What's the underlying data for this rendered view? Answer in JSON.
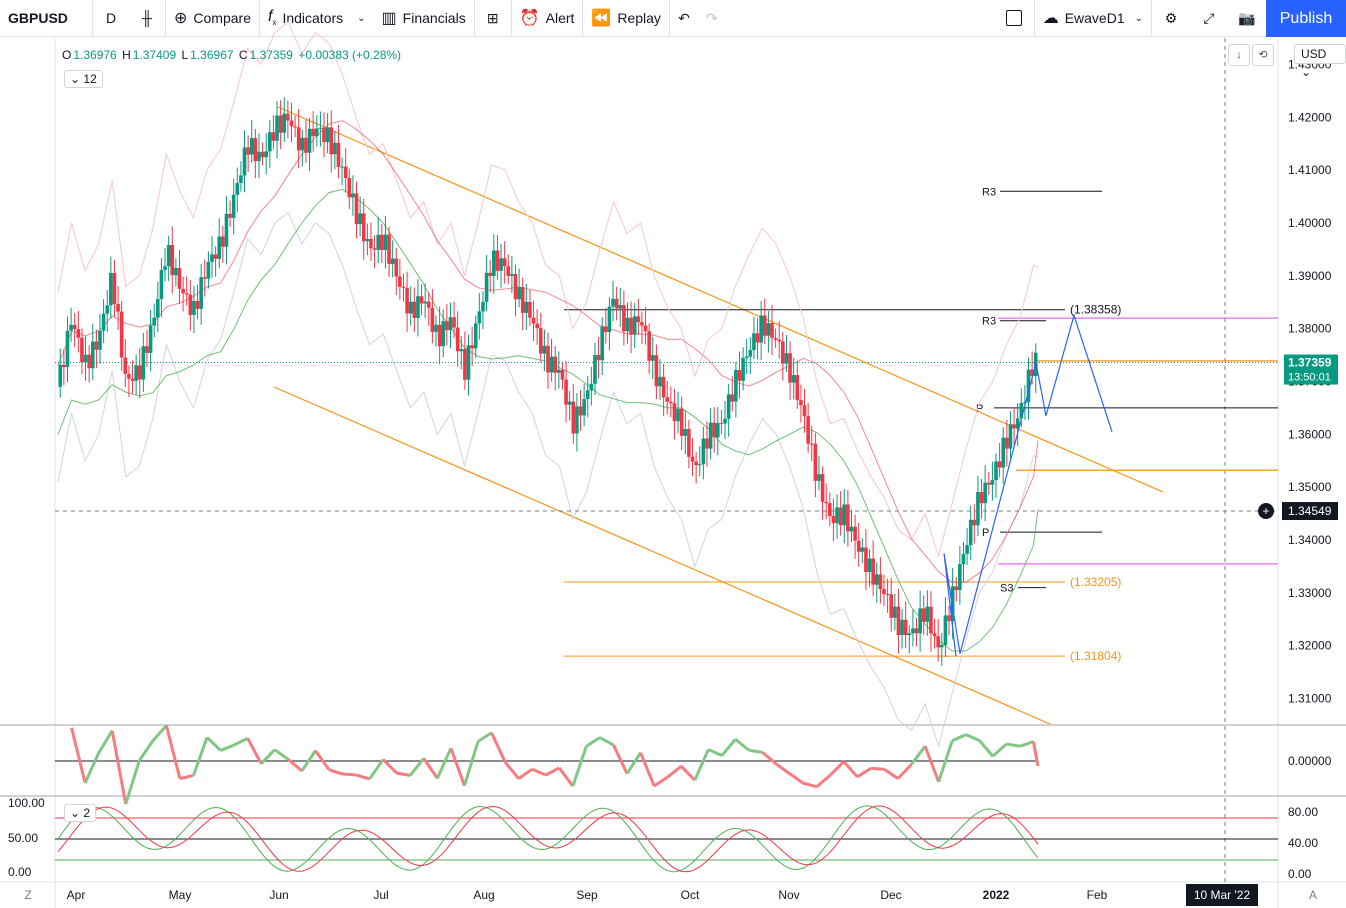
{
  "toolbar": {
    "symbol": "GBPUSD",
    "interval": "D",
    "compare": "Compare",
    "indicators": "Indicators",
    "financials": "Financials",
    "alert": "Alert",
    "replay": "Replay",
    "layout_name": "EwaveD1",
    "publish": "Publish"
  },
  "legend": {
    "open_label": "O",
    "open": "1.36976",
    "high_label": "H",
    "high": "1.37409",
    "low_label": "L",
    "low": "1.36967",
    "close_label": "C",
    "close": "1.37359",
    "change": "+0.00383 (+0.28%)",
    "indicators_count": "12",
    "pane3_count": "2"
  },
  "currency": "USD",
  "bottom": {
    "left_icon": "Z",
    "right_icon": "A",
    "date_badge": "10 Mar '22"
  },
  "colors": {
    "up": "#089981",
    "down": "#f23645",
    "orange": "#f7931a",
    "blue": "#2962ff",
    "magenta": "#e040fb",
    "accent": "#2962ff"
  },
  "chart_data": {
    "type": "candlestick",
    "symbol": "GBPUSD",
    "timeframe": "D",
    "ylim": [
      1.305,
      1.435
    ],
    "y_ticks": [
      "1.43000",
      "1.42000",
      "1.41000",
      "1.40000",
      "1.39000",
      "1.38000",
      "1.37000",
      "1.36000",
      "1.35000",
      "1.34000",
      "1.33000",
      "1.32000",
      "1.31000"
    ],
    "x_ticks": [
      "Apr",
      "May",
      "Jun",
      "Jul",
      "Aug",
      "Sep",
      "Oct",
      "Nov",
      "Dec",
      "2022",
      "Feb",
      "M"
    ],
    "last_price": "1.37359",
    "countdown": "13:50:01",
    "crosshair_price": "1.34549",
    "close_path": [
      [
        0,
        1.369
      ],
      [
        6,
        1.382
      ],
      [
        12,
        1.373
      ],
      [
        18,
        1.378
      ],
      [
        24,
        1.39
      ],
      [
        30,
        1.37
      ],
      [
        36,
        1.372
      ],
      [
        42,
        1.381
      ],
      [
        48,
        1.395
      ],
      [
        54,
        1.388
      ],
      [
        60,
        1.383
      ],
      [
        66,
        1.392
      ],
      [
        72,
        1.396
      ],
      [
        78,
        1.405
      ],
      [
        84,
        1.415
      ],
      [
        90,
        1.412
      ],
      [
        96,
        1.418
      ],
      [
        102,
        1.42
      ],
      [
        108,
        1.414
      ],
      [
        114,
        1.418
      ],
      [
        120,
        1.416
      ],
      [
        126,
        1.41
      ],
      [
        132,
        1.402
      ],
      [
        138,
        1.395
      ],
      [
        144,
        1.397
      ],
      [
        150,
        1.39
      ],
      [
        156,
        1.383
      ],
      [
        162,
        1.386
      ],
      [
        168,
        1.378
      ],
      [
        174,
        1.382
      ],
      [
        180,
        1.372
      ],
      [
        186,
        1.382
      ],
      [
        192,
        1.393
      ],
      [
        198,
        1.392
      ],
      [
        204,
        1.386
      ],
      [
        210,
        1.382
      ],
      [
        216,
        1.374
      ],
      [
        222,
        1.372
      ],
      [
        228,
        1.362
      ],
      [
        234,
        1.367
      ],
      [
        240,
        1.377
      ],
      [
        246,
        1.386
      ],
      [
        252,
        1.38
      ],
      [
        258,
        1.382
      ],
      [
        264,
        1.372
      ],
      [
        270,
        1.366
      ],
      [
        276,
        1.362
      ],
      [
        282,
        1.353
      ],
      [
        288,
        1.36
      ],
      [
        294,
        1.362
      ],
      [
        300,
        1.37
      ],
      [
        306,
        1.376
      ],
      [
        312,
        1.381
      ],
      [
        318,
        1.378
      ],
      [
        324,
        1.372
      ],
      [
        330,
        1.364
      ],
      [
        336,
        1.352
      ],
      [
        342,
        1.344
      ],
      [
        348,
        1.345
      ],
      [
        354,
        1.339
      ],
      [
        360,
        1.334
      ],
      [
        366,
        1.33
      ],
      [
        372,
        1.324
      ],
      [
        378,
        1.322
      ],
      [
        384,
        1.327
      ],
      [
        390,
        1.319
      ],
      [
        396,
        1.329
      ],
      [
        402,
        1.339
      ],
      [
        408,
        1.348
      ],
      [
        414,
        1.352
      ],
      [
        420,
        1.359
      ],
      [
        426,
        1.364
      ],
      [
        432,
        1.374
      ],
      [
        434,
        1.3736
      ]
    ],
    "pivot_levels": [
      {
        "label": "R3",
        "value": 1.406
      },
      {
        "label": "R3",
        "value": 1.3815
      },
      {
        "label": "P",
        "value": 1.365
      },
      {
        "label": "P",
        "value": 1.3415
      },
      {
        "label": "S3",
        "value": 1.331
      }
    ],
    "horizontal_levels": [
      {
        "label": "(1.38358)",
        "value": 1.38358,
        "color": "#131722"
      },
      {
        "label": "(1.33205)",
        "value": 1.33205,
        "color": "#f7931a"
      },
      {
        "label": "(1.31804)",
        "value": 1.31804,
        "color": "#f7931a"
      }
    ],
    "channel": {
      "upper": [
        [
          1.425,
          0
        ],
        [
          1.35,
          1
        ]
      ],
      "lower": [
        [
          1.389,
          0
        ],
        [
          1.305,
          1
        ]
      ]
    },
    "oscillator_pane1": {
      "ticks": [
        "0.00000"
      ]
    },
    "oscillator_pane2": {
      "left_ticks": [
        "100.00",
        "50.00",
        "0.00"
      ],
      "right_ticks": [
        "80.00",
        "40.00",
        "0.00"
      ]
    }
  }
}
